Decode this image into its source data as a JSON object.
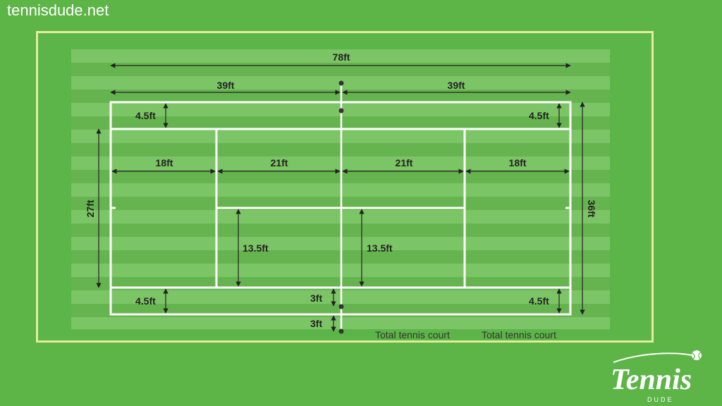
{
  "site_url": "tennisdude.net",
  "colors": {
    "background": "#5db447",
    "stripe_light": "#7cc566",
    "stripe_dark": "#66b44f",
    "lines": "#ffffff",
    "border": "#e4ec9a",
    "dimension": "#222222"
  },
  "labels": {
    "total_length": "78ft",
    "half_left": "39ft",
    "half_right": "39ft",
    "alley_top_left": "4.5ft",
    "alley_top_right": "4.5ft",
    "alley_bottom_left": "4.5ft",
    "alley_bottom_right": "4.5ft",
    "back_left": "18ft",
    "service_left": "21ft",
    "service_right": "21ft",
    "back_right": "18ft",
    "singles_width": "27ft",
    "doubles_width": "36ft",
    "service_box_left": "13.5ft",
    "service_box_right": "13.5ft",
    "net_post_1": "3ft",
    "net_post_2": "3ft",
    "caption_left": "Total tennis court",
    "caption_right": "Total tennis court"
  },
  "logo": {
    "wordmark": "Tennis",
    "subtext": "DUDE",
    "icon": "tennis-ball-icon"
  }
}
